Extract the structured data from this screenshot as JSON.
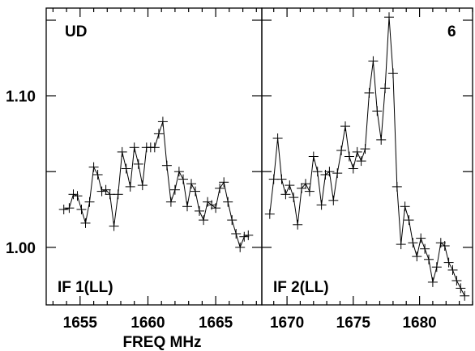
{
  "chart_data": {
    "type": "line",
    "xlabel": "FREQ MHz",
    "ylim": [
      0.962,
      1.158
    ],
    "yticks": [
      1.0,
      1.1
    ],
    "ytick_labels": [
      "1.00",
      "1.10"
    ],
    "marker": "plus",
    "color": "#000000",
    "panels": [
      {
        "corner_label": "UD",
        "label": "IF 1(LL)",
        "xlim": [
          1652.5,
          1668.4
        ],
        "xticks": [
          1655,
          1660,
          1665
        ],
        "xtick_labels": [
          "1655",
          "1660",
          "1665"
        ],
        "x": [
          1653.8,
          1654.2,
          1654.5,
          1654.8,
          1655.1,
          1655.4,
          1655.7,
          1656.0,
          1656.3,
          1656.6,
          1656.9,
          1657.2,
          1657.5,
          1657.8,
          1658.1,
          1658.4,
          1658.7,
          1659.0,
          1659.3,
          1659.6,
          1659.9,
          1660.2,
          1660.5,
          1660.8,
          1661.1,
          1661.4,
          1661.7,
          1662.0,
          1662.3,
          1662.6,
          1662.9,
          1663.2,
          1663.5,
          1663.8,
          1664.1,
          1664.4,
          1664.7,
          1665.0,
          1665.3,
          1665.6,
          1665.9,
          1666.2,
          1666.5,
          1666.8,
          1667.1,
          1667.4
        ],
        "y": [
          1.025,
          1.026,
          1.035,
          1.034,
          1.025,
          1.016,
          1.03,
          1.053,
          1.048,
          1.037,
          1.038,
          1.035,
          1.014,
          1.035,
          1.063,
          1.052,
          1.04,
          1.066,
          1.055,
          1.041,
          1.066,
          1.066,
          1.066,
          1.075,
          1.083,
          1.054,
          1.03,
          1.038,
          1.05,
          1.045,
          1.027,
          1.042,
          1.037,
          1.024,
          1.018,
          1.03,
          1.028,
          1.026,
          1.039,
          1.043,
          1.03,
          1.018,
          1.009,
          1.0,
          1.007,
          1.008
        ]
      },
      {
        "corner_label": "6",
        "label": "IF 2(LL)",
        "xlim": [
          1668.1,
          1684.0
        ],
        "xticks": [
          1670,
          1675,
          1680
        ],
        "xtick_labels": [
          "1670",
          "1675",
          "1680"
        ],
        "x": [
          1668.7,
          1669.0,
          1669.3,
          1669.6,
          1669.9,
          1670.2,
          1670.5,
          1670.8,
          1671.1,
          1671.4,
          1671.7,
          1672.0,
          1672.3,
          1672.6,
          1672.9,
          1673.2,
          1673.5,
          1673.8,
          1674.1,
          1674.4,
          1674.7,
          1675.0,
          1675.3,
          1675.6,
          1675.9,
          1676.2,
          1676.5,
          1676.8,
          1677.1,
          1677.4,
          1677.7,
          1678.0,
          1678.3,
          1678.6,
          1678.9,
          1679.2,
          1679.5,
          1679.8,
          1680.1,
          1680.4,
          1680.7,
          1681.0,
          1681.3,
          1681.6,
          1681.9,
          1682.2,
          1682.5,
          1682.8,
          1683.1,
          1683.4
        ],
        "y": [
          1.022,
          1.045,
          1.072,
          1.045,
          1.035,
          1.041,
          1.033,
          1.015,
          1.039,
          1.042,
          1.037,
          1.06,
          1.05,
          1.028,
          1.048,
          1.05,
          1.031,
          1.049,
          1.064,
          1.08,
          1.06,
          1.052,
          1.063,
          1.057,
          1.065,
          1.102,
          1.123,
          1.09,
          1.071,
          1.105,
          1.152,
          1.115,
          1.04,
          1.002,
          1.027,
          1.018,
          1.003,
          0.994,
          1.006,
          0.999,
          0.992,
          0.977,
          0.987,
          1.003,
          1.001,
          0.99,
          0.985,
          0.978,
          0.973,
          0.968
        ]
      }
    ]
  }
}
